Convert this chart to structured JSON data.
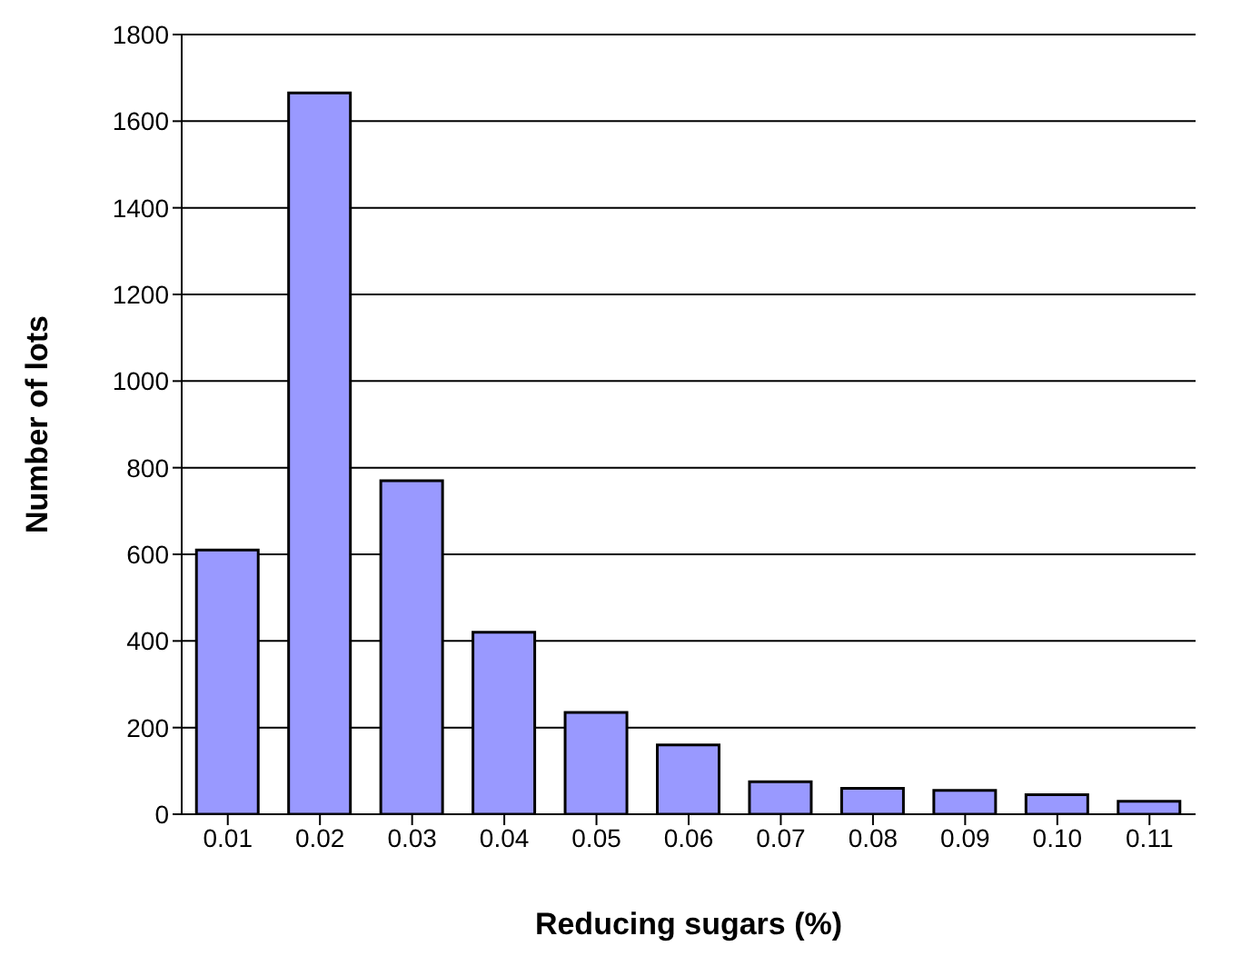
{
  "chart_data": {
    "type": "bar",
    "xlabel": "Reducing sugars (%)",
    "ylabel": "Number of lots",
    "categories": [
      "0.01",
      "0.02",
      "0.03",
      "0.04",
      "0.05",
      "0.06",
      "0.07",
      "0.08",
      "0.09",
      "0.10",
      "0.11"
    ],
    "values": [
      610,
      1665,
      770,
      420,
      235,
      160,
      75,
      60,
      55,
      45,
      30
    ],
    "color": "#9999ff",
    "ylim": [
      0,
      1800
    ],
    "yticks": [
      0,
      200,
      400,
      600,
      800,
      1000,
      1200,
      1400,
      1600,
      1800
    ],
    "grid": "y"
  }
}
